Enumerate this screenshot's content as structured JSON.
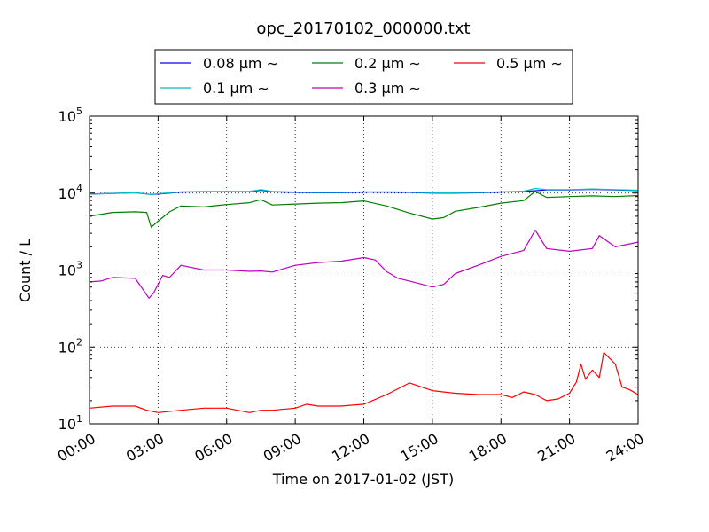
{
  "chart_data": {
    "type": "line",
    "title": "opc_20170102_000000.txt",
    "xlabel": "Time on 2017-01-02 (JST)",
    "ylabel": "Count / L",
    "xlim": [
      0,
      24
    ],
    "ylim": [
      10,
      100000
    ],
    "yscale": "log",
    "grid": true,
    "legend_position": "top",
    "x_ticks": [
      {
        "value": 0,
        "label": "00:00"
      },
      {
        "value": 3,
        "label": "03:00"
      },
      {
        "value": 6,
        "label": "06:00"
      },
      {
        "value": 9,
        "label": "09:00"
      },
      {
        "value": 12,
        "label": "12:00"
      },
      {
        "value": 15,
        "label": "15:00"
      },
      {
        "value": 18,
        "label": "18:00"
      },
      {
        "value": 21,
        "label": "21:00"
      },
      {
        "value": 24,
        "label": "24:00"
      }
    ],
    "y_ticks": [
      {
        "value": 10,
        "base": "10",
        "exp": "1"
      },
      {
        "value": 100,
        "base": "10",
        "exp": "2"
      },
      {
        "value": 1000,
        "base": "10",
        "exp": "3"
      },
      {
        "value": 10000,
        "base": "10",
        "exp": "4"
      },
      {
        "value": 100000,
        "base": "10",
        "exp": "5"
      }
    ],
    "series": [
      {
        "name": "0.08 μm ∼",
        "color": "#0000ff",
        "x": [
          0,
          1,
          2,
          2.7,
          3,
          4,
          5,
          6,
          7,
          7.5,
          8,
          9,
          10,
          11,
          12,
          13,
          14,
          15,
          16,
          17,
          18,
          19,
          20,
          21,
          22,
          23,
          24
        ],
        "y": [
          9700,
          9900,
          10100,
          9600,
          9700,
          10300,
          10400,
          10400,
          10400,
          10900,
          10400,
          10200,
          10100,
          10100,
          10300,
          10300,
          10200,
          10000,
          10000,
          10100,
          10300,
          10500,
          11000,
          11000,
          11200,
          11000,
          10800
        ]
      },
      {
        "name": "0.1 μm ∼",
        "color": "#00bfbf",
        "x": [
          0,
          1,
          2,
          2.7,
          3,
          4,
          5,
          6,
          7,
          7.5,
          8,
          9,
          10,
          11,
          12,
          13,
          14,
          15,
          16,
          17,
          18,
          19,
          19.5,
          20,
          21,
          22,
          23,
          24
        ],
        "y": [
          9700,
          9900,
          10100,
          9600,
          9800,
          10400,
          10500,
          10500,
          10500,
          11100,
          10500,
          10300,
          10200,
          10200,
          10400,
          10400,
          10300,
          10100,
          10100,
          10200,
          10400,
          10600,
          11500,
          11100,
          11100,
          11300,
          11100,
          10900
        ]
      },
      {
        "name": "0.2 μm ∼",
        "color": "#008000",
        "x": [
          0,
          1,
          2,
          2.5,
          2.7,
          3,
          3.5,
          4,
          5,
          6,
          7,
          7.5,
          8,
          9,
          10,
          11,
          12,
          13,
          14,
          15,
          15.5,
          16,
          17,
          18,
          19,
          19.5,
          20,
          21,
          22,
          23,
          24
        ],
        "y": [
          5000,
          5600,
          5700,
          5600,
          3600,
          4300,
          5700,
          6800,
          6600,
          7100,
          7500,
          8200,
          7000,
          7200,
          7400,
          7500,
          7900,
          6800,
          5500,
          4600,
          4800,
          5800,
          6500,
          7400,
          8000,
          10500,
          8800,
          9000,
          9200,
          9000,
          9300
        ]
      },
      {
        "name": "0.3 μm ∼",
        "color": "#bf00bf",
        "x": [
          0,
          0.5,
          1,
          2,
          2.6,
          2.8,
          3.2,
          3.5,
          4,
          5,
          6,
          7,
          7.5,
          8,
          9,
          10,
          11,
          12,
          12.5,
          13,
          13.5,
          14,
          15,
          15.5,
          16,
          17,
          18,
          19,
          19.5,
          20,
          21,
          22,
          22.3,
          23,
          24
        ],
        "y": [
          700,
          720,
          800,
          780,
          430,
          500,
          850,
          800,
          1150,
          1000,
          1000,
          960,
          970,
          940,
          1150,
          1250,
          1300,
          1450,
          1350,
          950,
          780,
          720,
          600,
          650,
          900,
          1150,
          1500,
          1800,
          3300,
          1900,
          1750,
          1900,
          2800,
          2000,
          2300
        ]
      },
      {
        "name": "0.5 μm ∼",
        "color": "#ff0000",
        "x": [
          0,
          1,
          2,
          2.5,
          3,
          4,
          5,
          6,
          7,
          7.5,
          8,
          9,
          9.5,
          10,
          11,
          12,
          13,
          14,
          15,
          16,
          17,
          18,
          18.5,
          19,
          19.5,
          20,
          20.5,
          21,
          21.3,
          21.5,
          21.7,
          22,
          22.3,
          22.5,
          23,
          23.3,
          23.6,
          24
        ],
        "y": [
          16,
          17,
          17,
          15,
          14,
          15,
          16,
          16,
          14,
          15,
          15,
          16,
          18,
          17,
          17,
          18,
          24,
          34,
          27,
          25,
          24,
          24,
          22,
          26,
          24,
          20,
          21,
          25,
          35,
          60,
          38,
          50,
          40,
          85,
          60,
          30,
          28,
          24
        ]
      }
    ]
  }
}
